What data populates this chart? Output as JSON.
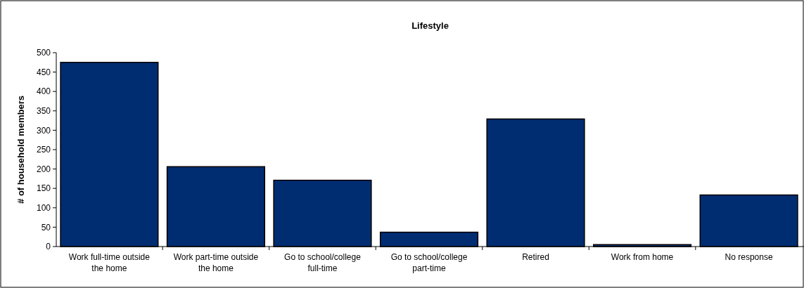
{
  "chart_data": {
    "type": "bar",
    "title": "Lifestyle",
    "ylabel": "# of household members",
    "categories": [
      "Work full-time outside the home",
      "Work part-time outside the home",
      "Go to school/college full-time",
      "Go to school/college part-time",
      "Retired",
      "Work from home",
      "No response"
    ],
    "values": [
      475,
      206,
      171,
      37,
      329,
      5,
      133
    ],
    "color": "#002d72",
    "ylim": [
      0,
      500
    ],
    "yticks": [
      0,
      50,
      100,
      150,
      200,
      250,
      300,
      350,
      400,
      450,
      500
    ],
    "grid": false
  }
}
